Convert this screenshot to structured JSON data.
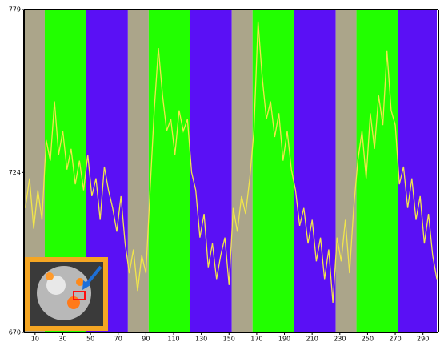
{
  "chart_data": {
    "type": "line",
    "x": [
      3,
      6,
      9,
      12,
      15,
      18,
      21,
      24,
      27,
      30,
      33,
      36,
      39,
      42,
      45,
      48,
      51,
      54,
      57,
      60,
      63,
      66,
      69,
      72,
      75,
      78,
      81,
      84,
      87,
      90,
      93,
      96,
      99,
      102,
      105,
      108,
      111,
      114,
      117,
      120,
      123,
      126,
      129,
      132,
      135,
      138,
      141,
      144,
      147,
      150,
      153,
      156,
      159,
      162,
      165,
      168,
      171,
      174,
      177,
      180,
      183,
      186,
      189,
      192,
      195,
      198,
      201,
      204,
      207,
      210,
      213,
      216,
      219,
      222,
      225,
      228,
      231,
      234,
      237,
      240,
      243,
      246,
      249,
      252,
      255,
      258,
      261,
      264,
      267,
      270,
      273,
      276,
      279,
      282,
      285,
      288,
      291,
      294,
      297,
      300
    ],
    "series": [
      {
        "color": "#f2e64a",
        "values": [
          712,
          722,
          705,
          718,
          708,
          735,
          728,
          748,
          730,
          738,
          725,
          732,
          720,
          728,
          718,
          730,
          716,
          722,
          708,
          726,
          718,
          712,
          704,
          716,
          700,
          690,
          698,
          684,
          696,
          690,
          718,
          745,
          766,
          750,
          738,
          742,
          730,
          745,
          738,
          742,
          724,
          718,
          702,
          710,
          692,
          700,
          688,
          696,
          702,
          686,
          712,
          704,
          716,
          710,
          722,
          738,
          775,
          756,
          742,
          748,
          736,
          744,
          728,
          738,
          725,
          718,
          706,
          712,
          700,
          708,
          694,
          702,
          688,
          698,
          680,
          702,
          694,
          708,
          690,
          712,
          728,
          738,
          722,
          744,
          732,
          750,
          740,
          765,
          745,
          740,
          720,
          726,
          712,
          722,
          708,
          716,
          700,
          710,
          696,
          688
        ]
      }
    ],
    "blocks": [
      {
        "start": 2,
        "end": 17,
        "color": "#aba58a"
      },
      {
        "start": 17,
        "end": 47,
        "color": "#22ff00"
      },
      {
        "start": 47,
        "end": 77,
        "color": "#5a10f5"
      },
      {
        "start": 77,
        "end": 92,
        "color": "#aba58a"
      },
      {
        "start": 92,
        "end": 122,
        "color": "#22ff00"
      },
      {
        "start": 122,
        "end": 152,
        "color": "#5a10f5"
      },
      {
        "start": 152,
        "end": 167,
        "color": "#aba58a"
      },
      {
        "start": 167,
        "end": 197,
        "color": "#22ff00"
      },
      {
        "start": 197,
        "end": 227,
        "color": "#5a10f5"
      },
      {
        "start": 227,
        "end": 242,
        "color": "#aba58a"
      },
      {
        "start": 242,
        "end": 272,
        "color": "#22ff00"
      },
      {
        "start": 272,
        "end": 300,
        "color": "#5a10f5"
      }
    ],
    "xlim": [
      2,
      300
    ],
    "xticks": [
      10,
      30,
      50,
      70,
      90,
      110,
      130,
      150,
      170,
      190,
      210,
      230,
      250,
      270,
      290
    ],
    "ylim": [
      670,
      779
    ],
    "yticks": [
      670,
      724,
      779
    ]
  }
}
